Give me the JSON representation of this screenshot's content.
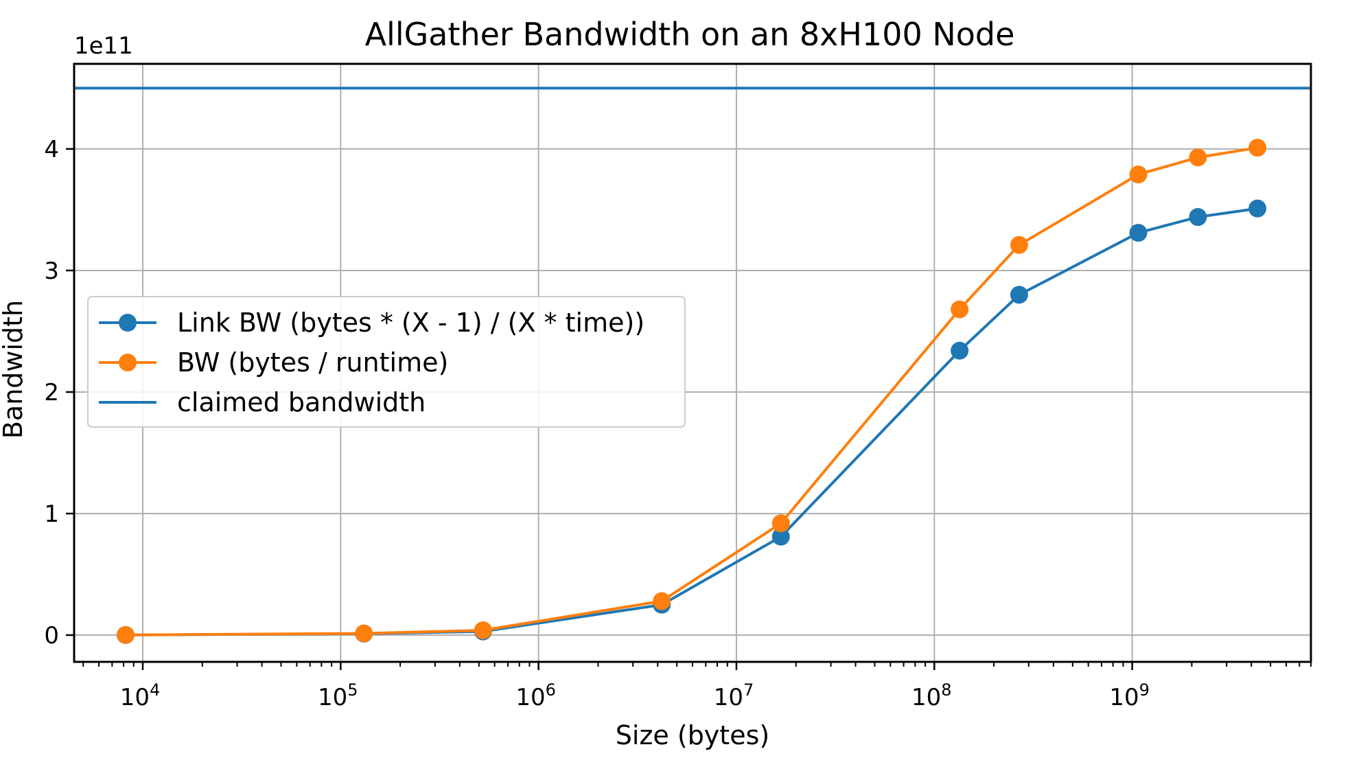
{
  "chart_data": {
    "type": "line",
    "title": "AllGather Bandwidth on an 8xH100 Node",
    "xlabel": "Size (bytes)",
    "ylabel": "Bandwidth",
    "y_offset_text": "1e11",
    "x_scale": "log",
    "xlim": [
      4500,
      8000000000
    ],
    "ylim": [
      -22000000000,
      470000000000
    ],
    "x_ticks": [
      {
        "value": 10000,
        "base": "10",
        "exp": "4"
      },
      {
        "value": 100000,
        "base": "10",
        "exp": "5"
      },
      {
        "value": 1000000,
        "base": "10",
        "exp": "6"
      },
      {
        "value": 10000000,
        "base": "10",
        "exp": "7"
      },
      {
        "value": 100000000,
        "base": "10",
        "exp": "8"
      },
      {
        "value": 1000000000,
        "base": "10",
        "exp": "9"
      }
    ],
    "y_ticks": [
      {
        "value": 0,
        "label": "0"
      },
      {
        "value": 100000000000,
        "label": "1"
      },
      {
        "value": 200000000000,
        "label": "2"
      },
      {
        "value": 300000000000,
        "label": "3"
      },
      {
        "value": 400000000000,
        "label": "4"
      }
    ],
    "grid": true,
    "legend_position": "center-left",
    "x": [
      8192,
      131072,
      524288,
      4194304,
      16777216,
      134217728,
      268435456,
      1073741824,
      2147483648,
      4294967296
    ],
    "series": [
      {
        "name": "Link BW (bytes * (X - 1) / (X * time))",
        "color": "#1f77b4",
        "marker": "circle",
        "values": [
          100000000,
          1200000000,
          3000000000,
          25000000000,
          81000000000,
          234000000000,
          280000000000,
          331000000000,
          344000000000,
          351000000000
        ]
      },
      {
        "name": "BW (bytes / runtime)",
        "color": "#ff7f0e",
        "marker": "circle",
        "values": [
          120000000,
          1400000000,
          4000000000,
          28000000000,
          92000000000,
          268000000000,
          321000000000,
          379000000000,
          393000000000,
          401000000000
        ]
      }
    ],
    "hlines": [
      {
        "name": "claimed bandwidth",
        "color": "#1f77b4",
        "value": 450000000000
      }
    ]
  }
}
